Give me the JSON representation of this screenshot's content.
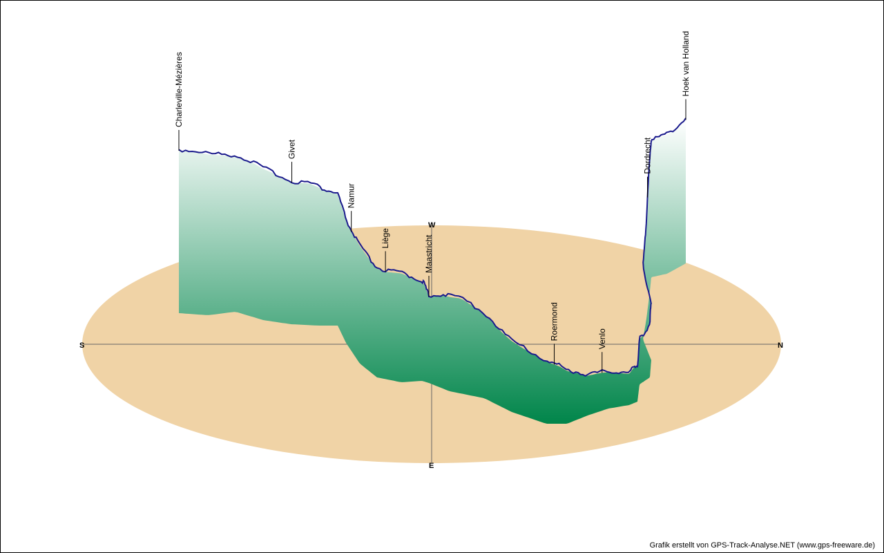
{
  "chart_data": {
    "type": "area",
    "projection": "3d elevation profile on compass ellipse",
    "compass": {
      "south": "S",
      "north": "N",
      "west": "W",
      "east": "E"
    },
    "colors": {
      "ground": "#f0d3a6",
      "fill_top": "#ffffff",
      "fill_bottom": "#00854a",
      "line": "#1a1a8c"
    },
    "profile_top": [
      [
        0,
        0.12
      ],
      [
        2,
        0.12
      ],
      [
        4,
        0.14
      ],
      [
        6,
        0.16
      ],
      [
        8,
        0.17
      ],
      [
        10,
        0.2
      ],
      [
        12,
        0.24
      ],
      [
        14,
        0.24
      ],
      [
        16,
        0.28
      ],
      [
        18,
        0.3
      ],
      [
        20,
        0.33
      ],
      [
        22,
        0.37
      ],
      [
        24,
        0.38
      ],
      [
        26,
        0.42
      ],
      [
        28,
        0.44
      ],
      [
        30,
        0.43
      ],
      [
        32,
        0.47
      ],
      [
        34,
        0.5
      ],
      [
        36,
        0.56
      ],
      [
        38,
        0.52
      ],
      [
        40,
        0.51
      ],
      [
        42,
        0.57
      ],
      [
        44,
        0.63
      ],
      [
        46,
        0.67
      ],
      [
        48,
        0.7
      ],
      [
        50,
        0.73
      ],
      [
        52,
        0.78
      ],
      [
        54,
        0.83
      ],
      [
        56,
        0.84
      ],
      [
        58,
        0.86
      ],
      [
        60,
        0.88
      ],
      [
        62,
        0.85
      ],
      [
        64,
        0.86
      ],
      [
        66,
        0.8
      ],
      [
        68,
        0.78
      ],
      [
        70,
        0.72
      ],
      [
        72,
        0.73
      ],
      [
        74,
        0.68
      ],
      [
        76,
        0.6
      ],
      [
        77,
        0.55
      ],
      [
        78,
        0.5
      ],
      [
        79,
        0.4
      ],
      [
        80,
        0.33
      ],
      [
        81,
        0.3
      ],
      [
        82,
        0.28
      ],
      [
        84,
        0.27
      ],
      [
        86,
        0.26
      ],
      [
        88,
        0.25
      ],
      [
        90,
        0.23
      ]
    ],
    "places": [
      {
        "name": "Charleville-Mézières",
        "pos": 0
      },
      {
        "name": "Givet",
        "pos": 12
      },
      {
        "name": "Namur",
        "pos": 22
      },
      {
        "name": "Liège",
        "pos": 28
      },
      {
        "name": "Maastricht",
        "pos": 36
      },
      {
        "name": "Roermond",
        "pos": 49
      },
      {
        "name": "Venlo",
        "pos": 56
      },
      {
        "name": "Dordrecht",
        "pos": 79
      },
      {
        "name": "Hoek van Holland",
        "pos": 90
      }
    ]
  },
  "footer": {
    "credit": "Grafik erstellt von GPS-Track-Analyse.NET (www.gps-freeware.de)"
  }
}
